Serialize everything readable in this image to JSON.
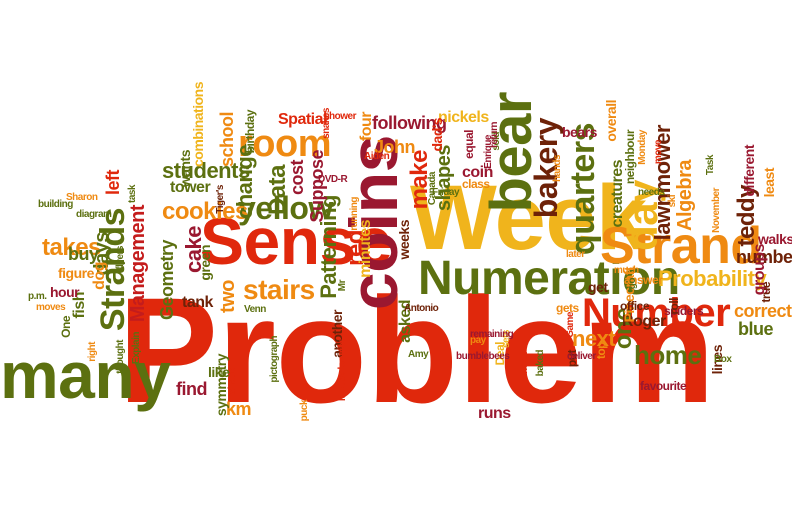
{
  "palette": {
    "red": "#e0280c",
    "orange": "#ef8a12",
    "gold": "#f0b41c",
    "olive": "#5c7010",
    "brown": "#6e2208",
    "maroon": "#9a1830",
    "crimson": "#c41c1c"
  },
  "words": [
    {
      "t": "Problem",
      "c": "red"
    },
    {
      "t": "many",
      "c": "olive"
    },
    {
      "t": "Week",
      "c": "gold"
    },
    {
      "t": "Sense",
      "c": "red"
    },
    {
      "t": "Numeration",
      "c": "olive"
    },
    {
      "t": "Strand",
      "c": "orange"
    },
    {
      "t": "bear",
      "c": "olive"
    },
    {
      "t": "Number",
      "c": "red"
    },
    {
      "t": "coins",
      "c": "maroon"
    },
    {
      "t": "room",
      "c": "orange"
    },
    {
      "t": "yellow",
      "c": "olive"
    },
    {
      "t": "quarters",
      "c": "olive"
    },
    {
      "t": "bakery",
      "c": "brown"
    },
    {
      "t": "day",
      "c": "gold"
    },
    {
      "t": "Strands",
      "c": "olive"
    },
    {
      "t": "Probability",
      "c": "gold"
    },
    {
      "t": "home",
      "c": "olive"
    },
    {
      "t": "stairs",
      "c": "orange"
    },
    {
      "t": "cookies",
      "c": "orange"
    },
    {
      "t": "takes",
      "c": "orange"
    },
    {
      "t": "students",
      "c": "olive"
    },
    {
      "t": "Management",
      "c": "crimson"
    },
    {
      "t": "cake",
      "c": "maroon"
    },
    {
      "t": "Data",
      "c": "olive"
    },
    {
      "t": "change",
      "c": "olive"
    },
    {
      "t": "days",
      "c": "olive"
    },
    {
      "t": "left",
      "c": "red"
    },
    {
      "t": "lawnmower",
      "c": "brown"
    },
    {
      "t": "Algebra",
      "c": "orange"
    },
    {
      "t": "teddy",
      "c": "brown"
    },
    {
      "t": "Patterning",
      "c": "olive"
    },
    {
      "t": "red",
      "c": "red"
    },
    {
      "t": "make",
      "c": "red"
    },
    {
      "t": "shapes",
      "c": "olive"
    },
    {
      "t": "two",
      "c": "orange"
    },
    {
      "t": "find",
      "c": "maroon"
    },
    {
      "t": "km",
      "c": "orange"
    },
    {
      "t": "one",
      "c": "olive"
    },
    {
      "t": "next",
      "c": "orange"
    },
    {
      "t": "Roger",
      "c": "brown"
    },
    {
      "t": "number",
      "c": "brown"
    },
    {
      "t": "correct",
      "c": "orange"
    },
    {
      "t": "blue",
      "c": "olive"
    },
    {
      "t": "groups",
      "c": "maroon"
    },
    {
      "t": "walks",
      "c": "maroon"
    },
    {
      "t": "different",
      "c": "maroon"
    },
    {
      "t": "least",
      "c": "orange"
    },
    {
      "t": "buy",
      "c": "olive"
    },
    {
      "t": "fish",
      "c": "olive"
    },
    {
      "t": "dog",
      "c": "orange"
    },
    {
      "t": "cost",
      "c": "maroon"
    },
    {
      "t": "Suppose",
      "c": "maroon"
    },
    {
      "t": "school",
      "c": "orange"
    },
    {
      "t": "John",
      "c": "orange"
    },
    {
      "t": "following",
      "c": "maroon"
    },
    {
      "t": "Spatial",
      "c": "red"
    },
    {
      "t": "nickels",
      "c": "gold"
    },
    {
      "t": "bears",
      "c": "maroon"
    },
    {
      "t": "creatures",
      "c": "olive"
    },
    {
      "t": "tower",
      "c": "olive"
    },
    {
      "t": "Geometry",
      "c": "olive"
    },
    {
      "t": "combinations",
      "c": "gold"
    },
    {
      "t": "symmetry",
      "c": "olive"
    },
    {
      "t": "like",
      "c": "olive"
    },
    {
      "t": "runs",
      "c": "maroon"
    },
    {
      "t": "favourite",
      "c": "maroon"
    },
    {
      "t": "lines",
      "c": "brown"
    },
    {
      "t": "minutes",
      "c": "gold"
    },
    {
      "t": "asked",
      "c": "olive"
    },
    {
      "t": "another",
      "c": "brown"
    },
    {
      "t": "get",
      "c": "brown"
    },
    {
      "t": "Pinecraft",
      "c": "orange"
    },
    {
      "t": "top",
      "c": "orange"
    },
    {
      "t": "put",
      "c": "brown"
    },
    {
      "t": "coin",
      "c": "maroon"
    },
    {
      "t": "four",
      "c": "orange"
    },
    {
      "t": "tank",
      "c": "brown"
    },
    {
      "t": "green",
      "c": "olive"
    },
    {
      "t": "gets",
      "c": "orange"
    },
    {
      "t": "true",
      "c": "brown"
    },
    {
      "t": "overall",
      "c": "orange"
    },
    {
      "t": "wants",
      "c": "olive"
    },
    {
      "t": "dad's",
      "c": "red"
    },
    {
      "t": "figure",
      "c": "orange"
    },
    {
      "t": "hour",
      "c": "maroon"
    },
    {
      "t": "equal",
      "c": "maroon"
    },
    {
      "t": "birthday",
      "c": "olive"
    },
    {
      "t": "spiders",
      "c": "maroon"
    },
    {
      "t": "answer",
      "c": "orange"
    },
    {
      "t": "roll",
      "c": "brown"
    },
    {
      "t": "weeks",
      "c": "brown"
    },
    {
      "t": "neighbour",
      "c": "olive"
    },
    {
      "t": "office",
      "c": "brown"
    },
    {
      "t": "Antonio",
      "c": "brown"
    },
    {
      "t": "sold",
      "c": "olive"
    },
    {
      "t": "return",
      "c": "maroon"
    },
    {
      "t": "Enrique",
      "c": "maroon"
    },
    {
      "t": "Mindful",
      "c": "red"
    },
    {
      "t": "class",
      "c": "orange"
    },
    {
      "t": "Deal",
      "c": "gold"
    },
    {
      "t": "sets",
      "c": "gold"
    },
    {
      "t": "shower",
      "c": "red"
    },
    {
      "t": "Tiger's",
      "c": "brown"
    },
    {
      "t": "Sharon",
      "c": "orange"
    },
    {
      "t": "building",
      "c": "olive"
    },
    {
      "t": "diagram",
      "c": "olive"
    },
    {
      "t": "task",
      "c": "olive"
    },
    {
      "t": "One",
      "c": "olive"
    },
    {
      "t": "moves",
      "c": "orange"
    },
    {
      "t": "thought",
      "c": "olive"
    },
    {
      "t": "right",
      "c": "orange"
    },
    {
      "t": "Explain",
      "c": "olive"
    },
    {
      "t": "Venn",
      "c": "olive"
    },
    {
      "t": "pictograph",
      "c": "olive"
    },
    {
      "t": "shape",
      "c": "red"
    },
    {
      "t": "Mouse loonies",
      "c": "red"
    },
    {
      "t": "puck",
      "c": "orange"
    },
    {
      "t": "Amy",
      "c": "olive"
    },
    {
      "t": "bumblebees",
      "c": "maroon"
    },
    {
      "t": "baked",
      "c": "olive"
    },
    {
      "t": "deliver",
      "c": "maroon"
    },
    {
      "t": "Game",
      "c": "red"
    },
    {
      "t": "Box",
      "c": "olive"
    },
    {
      "t": "much",
      "c": "orange"
    },
    {
      "t": "November",
      "c": "orange"
    },
    {
      "t": "Task",
      "c": "olive"
    },
    {
      "t": "Monday",
      "c": "orange"
    },
    {
      "t": "move",
      "c": "red"
    },
    {
      "t": "needs",
      "c": "olive"
    },
    {
      "t": "hands",
      "c": "orange"
    },
    {
      "t": "later",
      "c": "orange"
    },
    {
      "t": "Friday",
      "c": "olive"
    },
    {
      "t": "Canada",
      "c": "olive"
    },
    {
      "t": "Aiden",
      "c": "red"
    },
    {
      "t": "snakes",
      "c": "red"
    },
    {
      "t": "DVD-R",
      "c": "maroon"
    },
    {
      "t": "running",
      "c": "orange"
    },
    {
      "t": "flyers",
      "c": "olive"
    },
    {
      "t": "remaining",
      "c": "maroon"
    },
    {
      "t": "pay",
      "c": "orange"
    },
    {
      "t": "Mr",
      "c": "olive"
    },
    {
      "t": "p.m.",
      "c": "olive"
    },
    {
      "t": "go",
      "c": "olive"
    },
    {
      "t": "ski",
      "c": "orange"
    }
  ]
}
